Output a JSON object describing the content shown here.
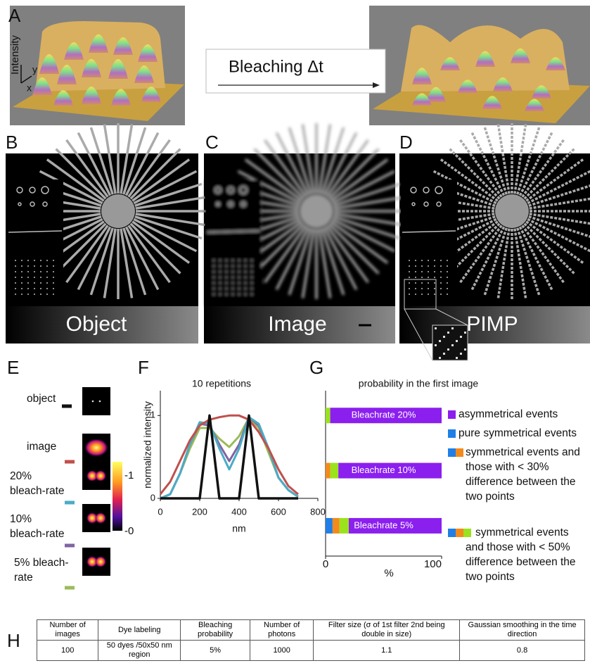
{
  "panel_labels": [
    "A",
    "B",
    "C",
    "D",
    "E",
    "F",
    "G",
    "H"
  ],
  "panel_a": {
    "axis_label": "Intensity",
    "y_label": "y",
    "x_label": "x",
    "arrow_text": "Bleaching Δt"
  },
  "image_labels": [
    "Object",
    "Image",
    "PIMP"
  ],
  "panel_e": {
    "colorbar_labels": [
      "-1",
      "-0"
    ]
  },
  "chart_data": [
    {
      "type": "line",
      "title": "10 repetitions",
      "y_label": "normalized intensity",
      "x_label": "nm",
      "x": [
        0,
        50,
        100,
        150,
        200,
        250,
        300,
        350,
        400,
        450,
        500,
        550,
        600,
        650,
        700
      ],
      "series": [
        {
          "name": "object",
          "color": "#111111",
          "values": [
            0,
            0,
            0,
            0,
            0,
            1.0,
            0,
            0,
            0,
            1.0,
            0,
            0,
            0,
            0,
            0
          ]
        },
        {
          "name": "image",
          "color": "#c0504d",
          "values": [
            0.05,
            0.2,
            0.45,
            0.7,
            0.88,
            0.95,
            0.98,
            1.0,
            1.0,
            0.95,
            0.8,
            0.6,
            0.35,
            0.15,
            0.05
          ]
        },
        {
          "name": "20% bleach-rate",
          "color": "#4bacc6",
          "values": [
            0,
            0.05,
            0.3,
            0.65,
            0.92,
            0.9,
            0.6,
            0.35,
            0.6,
            0.98,
            0.9,
            0.6,
            0.25,
            0.1,
            0.02
          ]
        },
        {
          "name": "10% bleach-rate",
          "color": "#8064a2",
          "values": [
            0,
            0.05,
            0.3,
            0.65,
            0.9,
            0.88,
            0.65,
            0.45,
            0.65,
            0.98,
            0.88,
            0.6,
            0.25,
            0.1,
            0.02
          ]
        },
        {
          "name": "5% bleach-rate",
          "color": "#9bbb59",
          "values": [
            0,
            0.05,
            0.3,
            0.6,
            0.85,
            0.85,
            0.72,
            0.62,
            0.75,
            0.97,
            0.85,
            0.55,
            0.25,
            0.1,
            0.02
          ]
        }
      ],
      "xlim": [
        0,
        800
      ],
      "ylim": [
        0,
        1.3
      ],
      "xticks": [
        0,
        200,
        400,
        600,
        800
      ],
      "yticks": [
        0,
        1
      ]
    },
    {
      "type": "bar",
      "orientation": "horizontal",
      "stacked": true,
      "title": "probability in the first image",
      "x_label": "%",
      "categories": [
        "Bleachrate 20%",
        "Bleachrate 10%",
        "Bleachrate 5%"
      ],
      "series": [
        {
          "name": "asymmetrical events",
          "color": "#8b1fee",
          "values": [
            96,
            89,
            80
          ]
        },
        {
          "name": "pure symmetrical events",
          "color": "#1f7fe6",
          "values": [
            0,
            0,
            6
          ]
        },
        {
          "name": "symmetrical  events and those with < 30% difference between the two points",
          "color": "#f28a1c",
          "values": [
            0,
            4,
            6
          ]
        },
        {
          "name": "symmetrical events and those with < 50% difference between the two points",
          "color": "#9be21c",
          "values": [
            4,
            7,
            8
          ]
        }
      ],
      "xlim": [
        0,
        100
      ],
      "xticks": [
        0,
        100
      ]
    }
  ],
  "table": {
    "header": [
      "Number of images",
      "Dye labeling",
      "Bleaching probability",
      "Number of photons",
      "Filter size (σ of 1st filter 2nd being double in size)",
      "Gaussian smoothing in the time direction"
    ],
    "rows": [
      [
        "100",
        "50 dyes /50x50 nm region",
        "5%",
        "1000",
        "1.1",
        "0.8"
      ]
    ]
  }
}
